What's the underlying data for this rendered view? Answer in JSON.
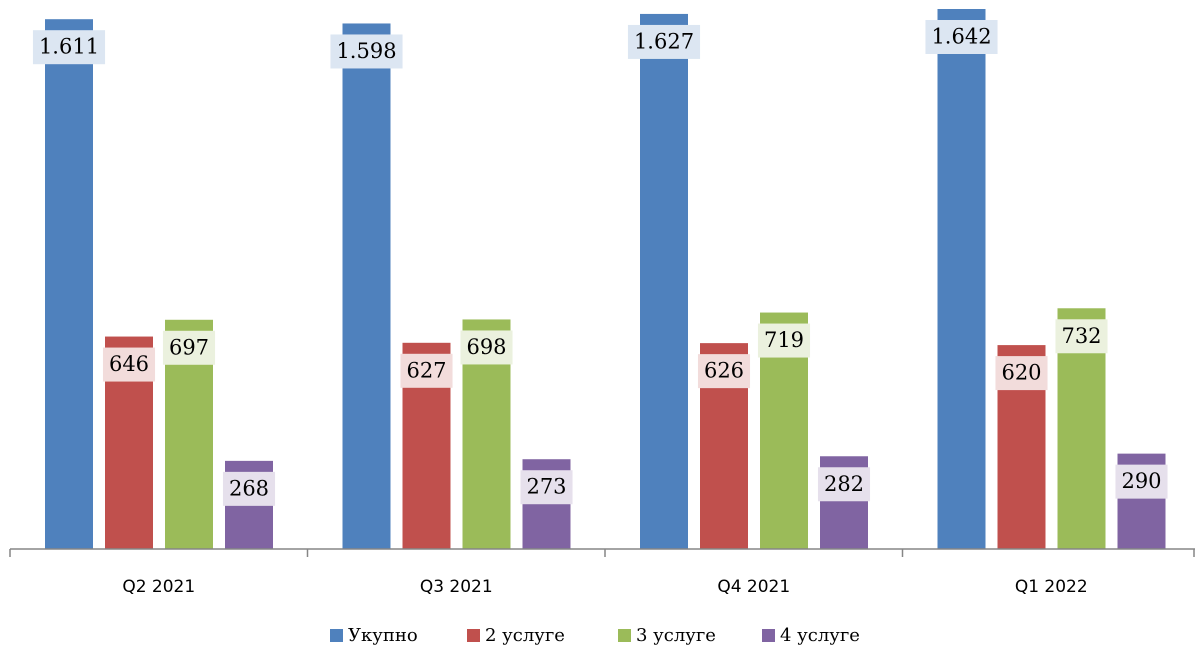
{
  "chart_data": {
    "type": "bar",
    "categories": [
      "Q2 2021",
      "Q3 2021",
      "Q4 2021",
      "Q1 2022"
    ],
    "series": [
      {
        "name": "Укупно",
        "color": "#4f81bd",
        "values": [
          1611,
          1598,
          1627,
          1642
        ],
        "value_labels": [
          "1.611",
          "1.598",
          "1.627",
          "1.642"
        ]
      },
      {
        "name": "2 услуге",
        "color": "#c0504d",
        "values": [
          646,
          627,
          626,
          620
        ]
      },
      {
        "name": "3 услуге",
        "color": "#9bbb59",
        "values": [
          697,
          698,
          719,
          732
        ]
      },
      {
        "name": "4 услуге",
        "color": "#8064a2",
        "values": [
          268,
          273,
          282,
          290
        ]
      }
    ],
    "legend": "bottom"
  }
}
